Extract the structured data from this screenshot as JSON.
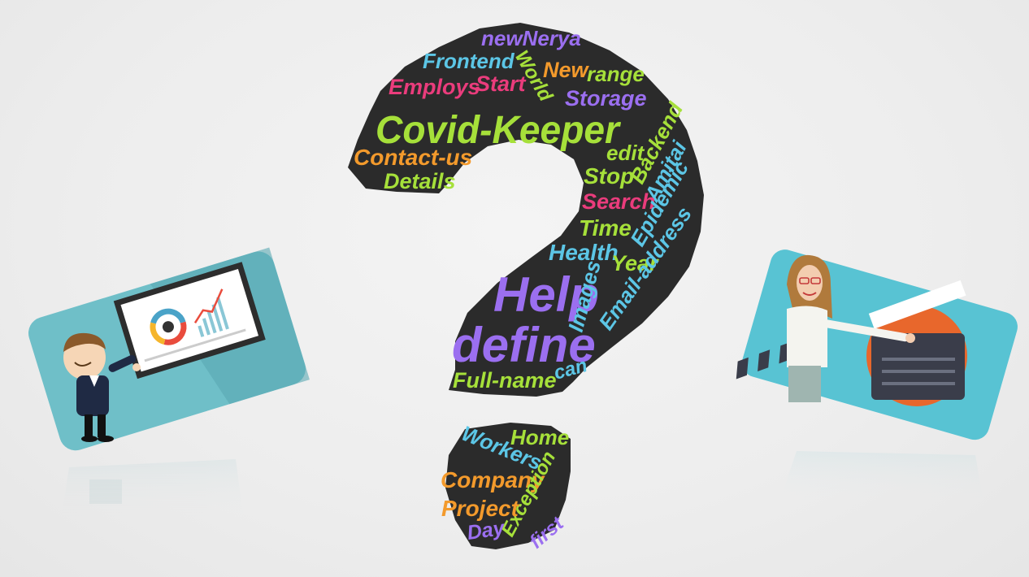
{
  "cloud": {
    "words": [
      {
        "text": "newNerya",
        "color": "#9b6ff0"
      },
      {
        "text": "Frontend",
        "color": "#5cc6e6"
      },
      {
        "text": "World",
        "color": "#a6e03a"
      },
      {
        "text": "New",
        "color": "#f39a2c"
      },
      {
        "text": "range",
        "color": "#a6e03a"
      },
      {
        "text": "Employs",
        "color": "#ea3c7c"
      },
      {
        "text": "Start",
        "color": "#ea3c7c"
      },
      {
        "text": "Storage",
        "color": "#9b6ff0"
      },
      {
        "text": "Covid-Keeper",
        "color": "#a6e03a"
      },
      {
        "text": "Contact-us",
        "color": "#f39a2c"
      },
      {
        "text": "edit",
        "color": "#a6e03a"
      },
      {
        "text": "Backend",
        "color": "#a6e03a"
      },
      {
        "text": "Details",
        "color": "#a6e03a"
      },
      {
        "text": "Stop",
        "color": "#a6e03a"
      },
      {
        "text": "Amitai",
        "color": "#5cc6e6"
      },
      {
        "text": "Search",
        "color": "#ea3c7c"
      },
      {
        "text": "Epidemic",
        "color": "#5cc6e6"
      },
      {
        "text": "Time",
        "color": "#a6e03a"
      },
      {
        "text": "Health",
        "color": "#5cc6e6"
      },
      {
        "text": "Year",
        "color": "#a6e03a"
      },
      {
        "text": "Email-address",
        "color": "#5cc6e6"
      },
      {
        "text": "Help",
        "color": "#9b6ff0"
      },
      {
        "text": "Images",
        "color": "#5cc6e6"
      },
      {
        "text": "define",
        "color": "#9b6ff0"
      },
      {
        "text": "Full-name",
        "color": "#a6e03a"
      },
      {
        "text": "can",
        "color": "#5cc6e6"
      },
      {
        "text": "Workers",
        "color": "#5cc6e6"
      },
      {
        "text": "Home",
        "color": "#a6e03a"
      },
      {
        "text": "Company",
        "color": "#f39a2c"
      },
      {
        "text": "Exception",
        "color": "#a6e03a"
      },
      {
        "text": "Project",
        "color": "#f39a2c"
      },
      {
        "text": "Day",
        "color": "#9b6ff0"
      },
      {
        "text": "first",
        "color": "#9b6ff0"
      }
    ]
  },
  "colors": {
    "background": "#eeeeee",
    "shape": "#2b2b2b",
    "card_left": "#6fbfc8",
    "card_right": "#58c3d3",
    "clapper_circle": "#e8672c"
  },
  "icons": {
    "left_card": "presenter-with-chart-board-icon",
    "right_card": "woman-with-clapperboard-icon"
  }
}
